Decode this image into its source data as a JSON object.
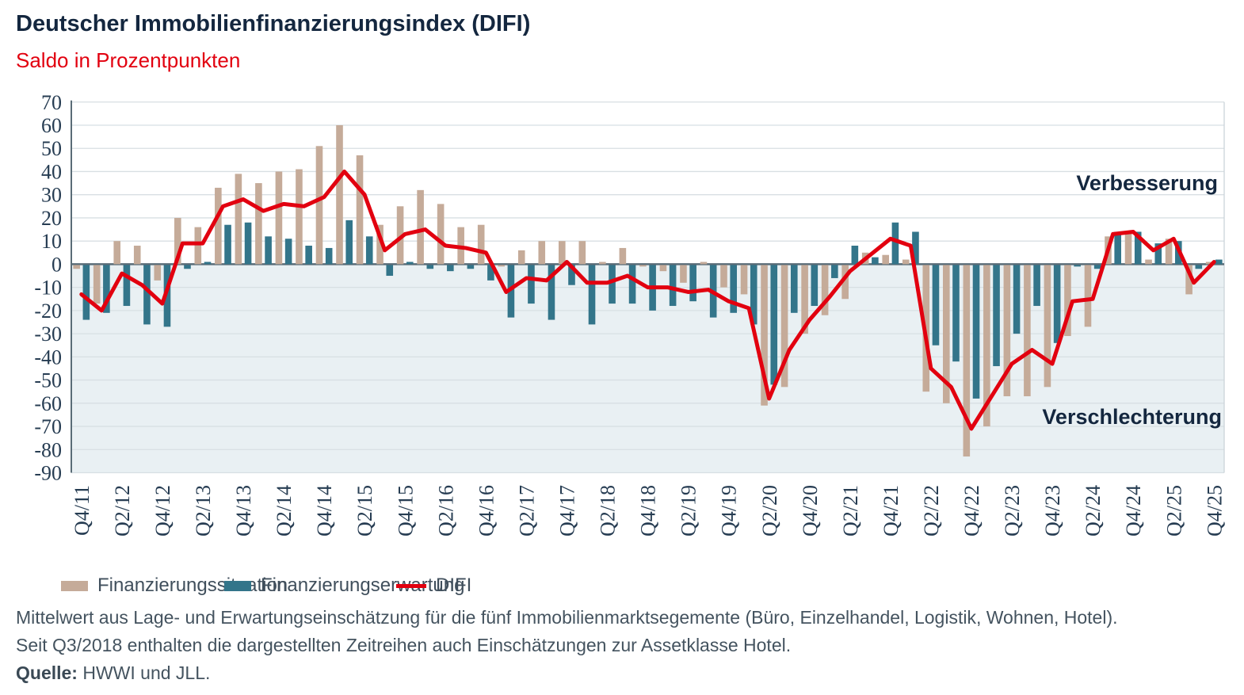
{
  "header": {
    "title": "Deutscher Immobilienfinanzierungsindex (DIFI)",
    "subtitle": "Saldo in Prozentpunkten"
  },
  "annotations": {
    "improvement": "Verbesserung",
    "deterioration": "Verschlechterung"
  },
  "legend": [
    {
      "label": "Finanzierungssituation",
      "color": "#c5ab99",
      "type": "box"
    },
    {
      "label": "Finanzierungserwartung",
      "color": "#33758a",
      "type": "box"
    },
    {
      "label": "DIFI",
      "color": "#e2000f",
      "type": "line"
    }
  ],
  "footer": {
    "line1": "Mittelwert aus Lage- und Erwartungseinschätzung für die fünf Immobilienmarktsegemente (Büro, Einzelhandel, Logistik, Wohnen, Hotel).",
    "line2": "Seit Q3/2018 enthalten die dargestellten Zeitreihen auch Einschätzungen zur Assetklasse Hotel.",
    "source_label": "Quelle:",
    "source_rest": " HWWI und JLL."
  },
  "colors": {
    "situation_bar": "#c5ab99",
    "expectation_bar": "#33758a",
    "difi_line": "#e2000f",
    "grid": "#d8dfe3",
    "zero_line": "#5a6c77",
    "axis_line": "#5a6c77",
    "right_border": "#cbd4da",
    "below_zero_fill": "#e9f0f3",
    "tick_text": "#263c52",
    "annotation_text": "#14273f"
  },
  "chart_data": {
    "type": "bar+line",
    "title": "Deutscher Immobilienfinanzierungsindex (DIFI)",
    "ylabel": "Saldo in Prozentpunkten",
    "ylim": [
      -90,
      70
    ],
    "ytick_step": 10,
    "grid": true,
    "legend_position": "bottom",
    "x": [
      "Q4/11",
      "Q1/12",
      "Q2/12",
      "Q3/12",
      "Q4/12",
      "Q1/13",
      "Q2/13",
      "Q3/13",
      "Q4/13",
      "Q1/14",
      "Q2/14",
      "Q3/14",
      "Q4/14",
      "Q1/15",
      "Q2/15",
      "Q3/15",
      "Q4/15",
      "Q1/16",
      "Q2/16",
      "Q3/16",
      "Q4/16",
      "Q1/17",
      "Q2/17",
      "Q3/17",
      "Q4/17",
      "Q1/18",
      "Q2/18",
      "Q3/18",
      "Q4/18",
      "Q1/19",
      "Q2/19",
      "Q3/19",
      "Q4/19",
      "Q1/20",
      "Q2/20",
      "Q3/20",
      "Q4/20",
      "Q1/21",
      "Q2/21",
      "Q3/21",
      "Q4/21",
      "Q1/22",
      "Q2/22",
      "Q3/22",
      "Q4/22",
      "Q1/23",
      "Q2/23",
      "Q3/23",
      "Q4/23",
      "Q1/24",
      "Q2/24",
      "Q3/24",
      "Q4/24",
      "Q1/25",
      "Q2/25",
      "Q3/25",
      "Q4/25"
    ],
    "x_tick_labels": [
      "Q4/11",
      "Q2/12",
      "Q4/12",
      "Q2/13",
      "Q4/13",
      "Q2/14",
      "Q4/14",
      "Q2/15",
      "Q4/15",
      "Q2/16",
      "Q4/16",
      "Q2/17",
      "Q4/17",
      "Q2/18",
      "Q4/18",
      "Q2/19",
      "Q4/19",
      "Q2/20",
      "Q4/20",
      "Q2/21",
      "Q4/21",
      "Q2/22",
      "Q4/22",
      "Q2/23",
      "Q4/23",
      "Q2/24",
      "Q4/24",
      "Q2/25",
      "Q4/25"
    ],
    "series": [
      {
        "name": "Finanzierungssituation",
        "type": "bar",
        "color": "#c5ab99",
        "values": [
          -2,
          -17,
          10,
          8,
          -7,
          20,
          16,
          33,
          39,
          35,
          40,
          41,
          51,
          60,
          47,
          17,
          25,
          32,
          26,
          16,
          17,
          -1,
          6,
          10,
          10,
          10,
          1,
          7,
          -1,
          -3,
          -8,
          1,
          -10,
          -13,
          -61,
          -53,
          -30,
          -22,
          -15,
          5,
          4,
          2,
          -55,
          -60,
          -83,
          -70,
          -57,
          -57,
          -53,
          -31,
          -27,
          12,
          14,
          2,
          11,
          -13,
          1
        ]
      },
      {
        "name": "Finanzierungserwartung",
        "type": "bar",
        "color": "#33758a",
        "values": [
          -24,
          -21,
          -18,
          -26,
          -27,
          -2,
          1,
          17,
          18,
          12,
          11,
          8,
          7,
          19,
          12,
          -5,
          1,
          -2,
          -3,
          -2,
          -7,
          -23,
          -17,
          -24,
          -9,
          -26,
          -17,
          -17,
          -20,
          -18,
          -16,
          -23,
          -21,
          -26,
          -52,
          -21,
          -18,
          -6,
          8,
          3,
          18,
          14,
          -35,
          -42,
          -58,
          -44,
          -30,
          -18,
          -34,
          -1,
          -2,
          14,
          14,
          9,
          10,
          -2,
          2
        ]
      },
      {
        "name": "DIFI",
        "type": "line",
        "color": "#e2000f",
        "values": [
          -13,
          -20,
          -4,
          -9,
          -17,
          9,
          9,
          25,
          28,
          23,
          26,
          25,
          29,
          40,
          30,
          6,
          13,
          15,
          8,
          7,
          5,
          -12,
          -6,
          -7,
          1,
          -8,
          -8,
          -5,
          -10,
          -10,
          -12,
          -11,
          -16,
          -19,
          -58,
          -37,
          -24,
          -14,
          -3,
          4,
          11,
          8,
          -45,
          -53,
          -71,
          -57,
          -43,
          -37,
          -43,
          -16,
          -15,
          13,
          14,
          6,
          11,
          -8,
          1
        ]
      }
    ]
  }
}
